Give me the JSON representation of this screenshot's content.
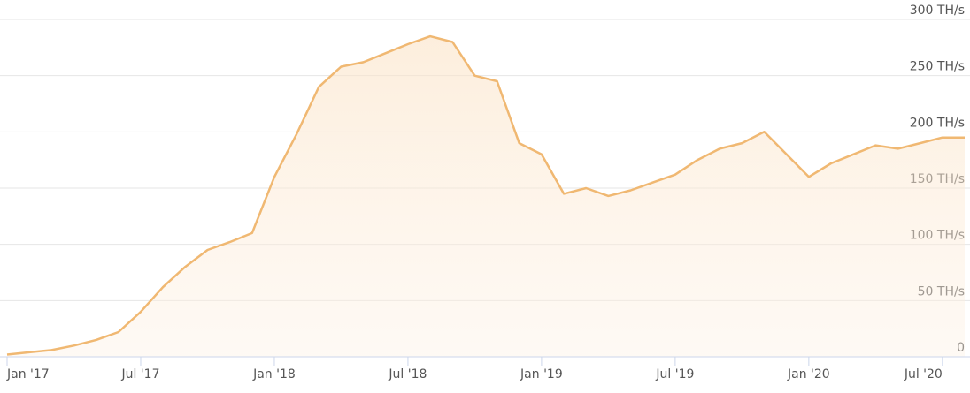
{
  "chart_data": {
    "type": "area",
    "x": [
      "2017-01",
      "2017-02",
      "2017-03",
      "2017-04",
      "2017-05",
      "2017-06",
      "2017-07",
      "2017-08",
      "2017-09",
      "2017-10",
      "2017-11",
      "2017-12",
      "2018-01",
      "2018-02",
      "2018-03",
      "2018-04",
      "2018-05",
      "2018-06",
      "2018-07",
      "2018-08",
      "2018-09",
      "2018-10",
      "2018-11",
      "2018-12",
      "2019-01",
      "2019-02",
      "2019-03",
      "2019-04",
      "2019-05",
      "2019-06",
      "2019-07",
      "2019-08",
      "2019-09",
      "2019-10",
      "2019-11",
      "2019-12",
      "2020-01",
      "2020-02",
      "2020-03",
      "2020-04",
      "2020-05",
      "2020-06",
      "2020-07",
      "2020-08"
    ],
    "series": [
      {
        "color": "#f0b872",
        "values": [
          2,
          4,
          6,
          10,
          15,
          22,
          40,
          62,
          80,
          95,
          102,
          110,
          160,
          198,
          240,
          258,
          262,
          270,
          278,
          285,
          280,
          250,
          245,
          190,
          180,
          145,
          150,
          143,
          148,
          155,
          162,
          175,
          185,
          190,
          200,
          180,
          160,
          172,
          180,
          188,
          185,
          190,
          195,
          195
        ]
      }
    ],
    "xlim": [
      "2017-01",
      "2020-08"
    ],
    "xticks": [
      {
        "value": "2017-01",
        "label": "Jan '17"
      },
      {
        "value": "2017-07",
        "label": "Jul '17"
      },
      {
        "value": "2018-01",
        "label": "Jan '18"
      },
      {
        "value": "2018-07",
        "label": "Jul '18"
      },
      {
        "value": "2019-01",
        "label": "Jan '19"
      },
      {
        "value": "2019-07",
        "label": "Jul '19"
      },
      {
        "value": "2020-01",
        "label": "Jan '20"
      },
      {
        "value": "2020-07",
        "label": "Jul '20"
      }
    ],
    "ylim": [
      0,
      300
    ],
    "yticks": [
      0,
      {
        "value": 50,
        "label": "50 TH/s"
      },
      {
        "value": 100,
        "label": "100 TH/s"
      },
      {
        "value": 150,
        "label": "150 TH/s"
      },
      {
        "value": 200,
        "label": "200 TH/s"
      },
      {
        "value": 250,
        "label": "250 TH/s"
      },
      {
        "value": 300,
        "label": "300 TH/s"
      }
    ],
    "grid": true
  }
}
